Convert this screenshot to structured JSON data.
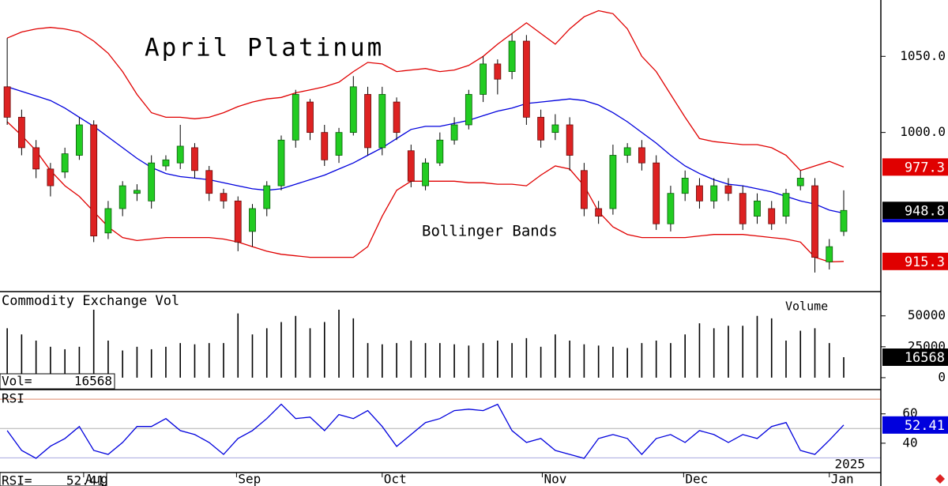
{
  "chart_data": [
    {
      "type": "candlestick",
      "title": "April Platinum",
      "annotation": "Bollinger Bands",
      "xlim": [
        -0.5,
        60.3
      ],
      "ylim": [
        896,
        1087
      ],
      "yticks": [
        {
          "value": 1000,
          "label": "1000.0"
        },
        {
          "value": 1050,
          "label": "1050.0"
        }
      ],
      "up_color": "#22cc22",
      "down_color": "#dd2222",
      "band_color": "#e00000",
      "middle_color": "#0000dd",
      "open": [
        1030,
        1010,
        990,
        976,
        974,
        985,
        1005,
        934,
        950,
        960,
        955,
        978,
        980,
        990,
        975,
        960,
        955,
        935,
        950,
        965,
        995,
        1020,
        1000,
        985,
        1000,
        1025,
        990,
        1020,
        988,
        965,
        980,
        995,
        1005,
        1025,
        1045,
        1040,
        1060,
        1010,
        1000,
        1005,
        975,
        950,
        950,
        985,
        990,
        980,
        940,
        960,
        965,
        955,
        965,
        960,
        945,
        950,
        945,
        965,
        965,
        915,
        935
      ],
      "high": [
        1062,
        1015,
        995,
        980,
        990,
        1010,
        1008,
        955,
        968,
        966,
        985,
        985,
        1005,
        993,
        978,
        963,
        958,
        953,
        968,
        998,
        1028,
        1022,
        1005,
        1003,
        1037,
        1030,
        1030,
        1023,
        992,
        983,
        1000,
        1010,
        1028,
        1050,
        1048,
        1065,
        1064,
        1015,
        1012,
        1010,
        980,
        955,
        992,
        993,
        995,
        985,
        965,
        975,
        970,
        970,
        970,
        965,
        960,
        955,
        963,
        975,
        970,
        930,
        962
      ],
      "low": [
        1005,
        985,
        970,
        958,
        970,
        982,
        928,
        930,
        945,
        955,
        950,
        975,
        976,
        970,
        955,
        950,
        922,
        925,
        945,
        962,
        990,
        995,
        978,
        980,
        998,
        985,
        985,
        995,
        964,
        962,
        978,
        992,
        1002,
        1020,
        1025,
        1035,
        1005,
        990,
        995,
        975,
        945,
        940,
        946,
        980,
        975,
        936,
        935,
        955,
        950,
        950,
        955,
        936,
        940,
        936,
        940,
        962,
        908,
        910,
        932
      ],
      "close": [
        1010,
        990,
        976,
        965,
        986,
        1005,
        932,
        950,
        965,
        962,
        980,
        982,
        991,
        975,
        960,
        955,
        928,
        950,
        965,
        995,
        1025,
        1000,
        982,
        1000,
        1030,
        990,
        1025,
        1000,
        968,
        980,
        995,
        1005,
        1025,
        1045,
        1035,
        1060,
        1010,
        995,
        1005,
        985,
        950,
        945,
        985,
        990,
        980,
        940,
        960,
        970,
        955,
        965,
        960,
        940,
        955,
        940,
        960,
        970,
        918,
        925,
        948.8
      ],
      "bands": {
        "upper": [
          1062,
          1066,
          1068,
          1069,
          1068,
          1066,
          1060,
          1052,
          1040,
          1025,
          1013,
          1010,
          1010,
          1009,
          1010,
          1013,
          1017,
          1020,
          1022,
          1023,
          1026,
          1028,
          1030,
          1033,
          1040,
          1046,
          1045,
          1040,
          1041,
          1042,
          1040,
          1041,
          1044,
          1050,
          1058,
          1065,
          1072,
          1065,
          1058,
          1068,
          1076,
          1080,
          1078,
          1068,
          1050,
          1040,
          1025,
          1010,
          996,
          994,
          993,
          992,
          992,
          990,
          985,
          975,
          978,
          981,
          977.3
        ],
        "middle": [
          1030,
          1027,
          1024,
          1021,
          1016,
          1010,
          1004,
          997,
          990,
          983,
          977,
          973,
          971,
          970,
          969,
          967,
          965,
          963,
          962,
          963,
          966,
          969,
          972,
          976,
          980,
          985,
          990,
          996,
          1002,
          1004,
          1004,
          1006,
          1008,
          1011,
          1014,
          1016,
          1019,
          1020,
          1021,
          1022,
          1021,
          1018,
          1013,
          1007,
          1000,
          993,
          985,
          978,
          973,
          969,
          966,
          965,
          963,
          961,
          958,
          955,
          953,
          949,
          947
        ],
        "lower": [
          1007,
          998,
          988,
          975,
          965,
          958,
          948,
          938,
          931,
          929,
          930,
          931,
          931,
          931,
          931,
          930,
          928,
          925,
          922,
          920,
          919,
          918,
          918,
          918,
          918,
          925,
          945,
          962,
          968,
          968,
          968,
          968,
          967,
          967,
          966,
          966,
          965,
          972,
          978,
          976,
          965,
          948,
          938,
          933,
          931,
          931,
          931,
          931,
          932,
          933,
          933,
          933,
          932,
          931,
          930,
          928,
          918,
          915,
          915.3
        ]
      }
    },
    {
      "type": "bar",
      "title": "Commodity Exchange Vol",
      "annotation": "Volume",
      "readout_label": "Vol=",
      "xlim": [
        -0.5,
        60.3
      ],
      "ylim": [
        -9000,
        69000
      ],
      "yticks": [
        0,
        25000,
        50000
      ],
      "color": "#000000",
      "values": [
        40000,
        35000,
        30000,
        25000,
        23000,
        25000,
        55000,
        30000,
        22000,
        25000,
        23000,
        25000,
        28000,
        27000,
        28000,
        28000,
        52000,
        35000,
        40000,
        45000,
        50000,
        40000,
        45000,
        55000,
        48000,
        28000,
        27000,
        28000,
        30000,
        28000,
        28000,
        27000,
        26000,
        28000,
        30000,
        28000,
        32000,
        25000,
        35000,
        30000,
        27000,
        26000,
        25000,
        24000,
        28000,
        30000,
        28000,
        35000,
        44000,
        40000,
        42000,
        42000,
        50000,
        48000,
        30000,
        38000,
        40000,
        28000,
        16568
      ]
    },
    {
      "type": "line",
      "title": "RSI",
      "readout_label": "RSI=",
      "year_label": "2025",
      "xlim": [
        -0.5,
        60.3
      ],
      "ylim": [
        20,
        76
      ],
      "yticks": [
        40,
        60
      ],
      "color": "#0000dd",
      "reference_lines": [
        {
          "value": 70,
          "color": "#e08a6a"
        },
        {
          "value": 50,
          "color": "#b0b0b0"
        },
        {
          "value": 30,
          "color": "#a8a8e0"
        }
      ],
      "xticks": [
        {
          "value": 5.3,
          "label": "Aug"
        },
        {
          "value": 15.9,
          "label": "Sep"
        },
        {
          "value": 26,
          "label": "Oct"
        },
        {
          "value": 37.1,
          "label": "Nov"
        },
        {
          "value": 46.9,
          "label": "Dec"
        },
        {
          "value": 57,
          "label": "Jan"
        }
      ],
      "values": [
        48.6,
        35.1,
        29.7,
        38,
        43.2,
        51.4,
        35.1,
        32.4,
        40.5,
        51.4,
        51.4,
        56.8,
        48.6,
        45.9,
        40.5,
        32.4,
        43.2,
        48.6,
        56.8,
        66.5,
        56.8,
        57.8,
        48.6,
        59.5,
        56.8,
        62.2,
        51.4,
        37.8,
        45.9,
        54.1,
        56.8,
        62.2,
        63.2,
        62.2,
        66.5,
        48.6,
        40.5,
        43.2,
        35.1,
        32.4,
        29.7,
        43.2,
        45.9,
        43.2,
        32.4,
        43.2,
        45.9,
        40.5,
        48.6,
        45.9,
        40.5,
        45.9,
        43.2,
        51.4,
        54.1,
        35.1,
        32.4,
        42,
        52.41
      ]
    }
  ]
}
